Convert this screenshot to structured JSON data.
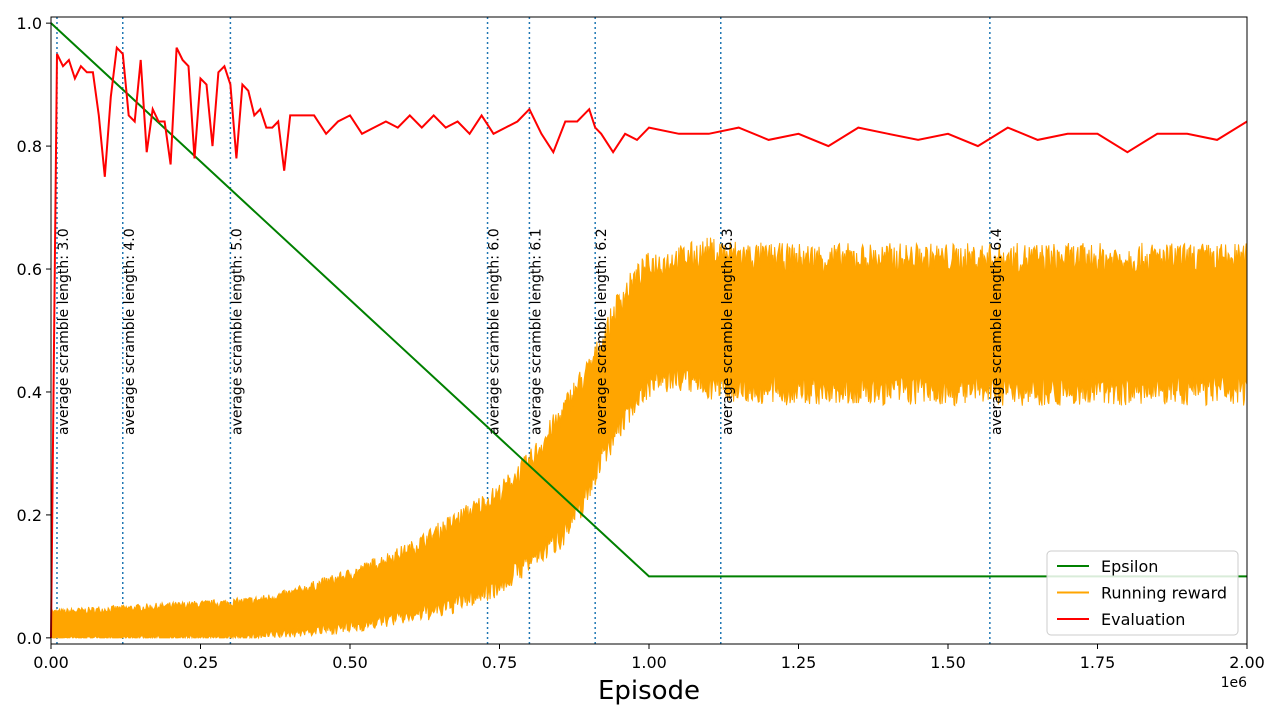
{
  "chart_data": {
    "type": "line",
    "xlabel": "Episode",
    "x_offset_label": "1e6",
    "xlim": [
      0,
      2000000
    ],
    "ylim": [
      -0.01,
      1.01
    ],
    "x_ticks": [
      0,
      250000,
      500000,
      750000,
      1000000,
      1250000,
      1500000,
      1750000,
      2000000
    ],
    "x_tick_labels": [
      "0.00",
      "0.25",
      "0.50",
      "0.75",
      "1.00",
      "1.25",
      "1.50",
      "1.75",
      "2.00"
    ],
    "y_ticks": [
      0.0,
      0.2,
      0.4,
      0.6,
      0.8,
      1.0
    ],
    "y_tick_labels": [
      "0.0",
      "0.2",
      "0.4",
      "0.6",
      "0.8",
      "1.0"
    ],
    "grid": false,
    "legend_position": "lower-right",
    "annotations": [
      {
        "x": 10000,
        "text": "average scramble length: 3.0"
      },
      {
        "x": 120000,
        "text": "average scramble length: 4.0"
      },
      {
        "x": 300000,
        "text": "average scramble length: 5.0"
      },
      {
        "x": 730000,
        "text": "average scramble length: 6.0"
      },
      {
        "x": 800000,
        "text": "average scramble length: 6.1"
      },
      {
        "x": 910000,
        "text": "average scramble length: 6.2"
      },
      {
        "x": 1120000,
        "text": "average scramble length: 6.3"
      },
      {
        "x": 1570000,
        "text": "average scramble length: 6.4"
      }
    ],
    "series": [
      {
        "name": "Epsilon",
        "color": "#008000",
        "x": [
          0,
          1000000,
          2000000
        ],
        "y": [
          1.0,
          0.1,
          0.1
        ]
      },
      {
        "name": "Running reward",
        "color": "#FFA500",
        "band": true,
        "x": [
          0,
          100000,
          200000,
          300000,
          350000,
          400000,
          450000,
          500000,
          550000,
          600000,
          650000,
          700000,
          750000,
          800000,
          850000,
          880000,
          900000,
          920000,
          950000,
          980000,
          1000000,
          1050000,
          1100000,
          1200000,
          1300000,
          1400000,
          1500000,
          1600000,
          1700000,
          1800000,
          1900000,
          2000000
        ],
        "low": [
          0.0,
          0.0,
          0.0,
          0.0,
          0.005,
          0.01,
          0.015,
          0.02,
          0.03,
          0.04,
          0.05,
          0.07,
          0.09,
          0.13,
          0.17,
          0.21,
          0.25,
          0.3,
          0.35,
          0.4,
          0.42,
          0.43,
          0.42,
          0.41,
          0.41,
          0.41,
          0.41,
          0.41,
          0.41,
          0.41,
          0.41,
          0.41
        ],
        "high": [
          0.04,
          0.045,
          0.05,
          0.055,
          0.06,
          0.07,
          0.085,
          0.1,
          0.12,
          0.14,
          0.17,
          0.2,
          0.23,
          0.28,
          0.35,
          0.4,
          0.43,
          0.47,
          0.54,
          0.58,
          0.6,
          0.61,
          0.62,
          0.61,
          0.61,
          0.61,
          0.61,
          0.61,
          0.61,
          0.61,
          0.61,
          0.61
        ]
      },
      {
        "name": "Evaluation",
        "color": "#FF0000",
        "x": [
          0,
          10000,
          20000,
          30000,
          40000,
          50000,
          60000,
          70000,
          80000,
          90000,
          100000,
          110000,
          120000,
          130000,
          140000,
          150000,
          160000,
          170000,
          180000,
          190000,
          200000,
          210000,
          220000,
          230000,
          240000,
          250000,
          260000,
          270000,
          280000,
          290000,
          300000,
          310000,
          320000,
          330000,
          340000,
          350000,
          360000,
          370000,
          380000,
          390000,
          400000,
          420000,
          440000,
          460000,
          480000,
          500000,
          520000,
          540000,
          560000,
          580000,
          600000,
          620000,
          640000,
          660000,
          680000,
          700000,
          720000,
          740000,
          760000,
          780000,
          800000,
          820000,
          840000,
          860000,
          880000,
          900000,
          910000,
          920000,
          940000,
          960000,
          980000,
          1000000,
          1050000,
          1100000,
          1150000,
          1200000,
          1250000,
          1300000,
          1350000,
          1400000,
          1450000,
          1500000,
          1550000,
          1600000,
          1650000,
          1700000,
          1750000,
          1800000,
          1850000,
          1900000,
          1950000,
          2000000
        ],
        "y": [
          0.0,
          0.95,
          0.93,
          0.94,
          0.91,
          0.93,
          0.92,
          0.92,
          0.85,
          0.75,
          0.88,
          0.96,
          0.95,
          0.85,
          0.84,
          0.94,
          0.79,
          0.86,
          0.84,
          0.84,
          0.77,
          0.96,
          0.94,
          0.93,
          0.78,
          0.91,
          0.9,
          0.8,
          0.92,
          0.93,
          0.9,
          0.78,
          0.9,
          0.89,
          0.85,
          0.86,
          0.83,
          0.83,
          0.84,
          0.76,
          0.85,
          0.85,
          0.85,
          0.82,
          0.84,
          0.85,
          0.82,
          0.83,
          0.84,
          0.83,
          0.85,
          0.83,
          0.85,
          0.83,
          0.84,
          0.82,
          0.85,
          0.82,
          0.83,
          0.84,
          0.86,
          0.82,
          0.79,
          0.84,
          0.84,
          0.86,
          0.83,
          0.82,
          0.79,
          0.82,
          0.81,
          0.83,
          0.82,
          0.82,
          0.83,
          0.81,
          0.82,
          0.8,
          0.83,
          0.82,
          0.81,
          0.82,
          0.8,
          0.83,
          0.81,
          0.82,
          0.82,
          0.79,
          0.82,
          0.82,
          0.81,
          0.84
        ]
      }
    ]
  }
}
